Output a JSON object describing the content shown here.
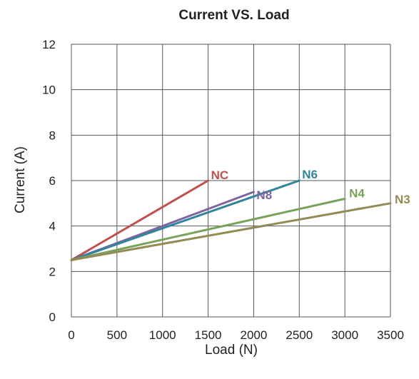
{
  "chart_data": {
    "type": "line",
    "title": "Current VS. Load",
    "xlabel": "Load (N)",
    "ylabel": "Current (A)",
    "xlim": [
      0,
      3500
    ],
    "ylim": [
      0,
      12
    ],
    "xticks": [
      0,
      500,
      1000,
      1500,
      2000,
      2500,
      3000,
      3500
    ],
    "yticks": [
      0,
      2,
      4,
      6,
      8,
      10,
      12
    ],
    "grid": true,
    "legend": "inline-labels",
    "series": [
      {
        "name": "NC",
        "color": "#c0504d",
        "points": [
          [
            0,
            2.5
          ],
          [
            1500,
            6.0
          ]
        ]
      },
      {
        "name": "N8",
        "color": "#8064a2",
        "points": [
          [
            0,
            2.5
          ],
          [
            2000,
            5.5
          ]
        ]
      },
      {
        "name": "N6",
        "color": "#31849b",
        "points": [
          [
            0,
            2.5
          ],
          [
            2500,
            6.0
          ]
        ]
      },
      {
        "name": "N4",
        "color": "#77a359",
        "points": [
          [
            0,
            2.5
          ],
          [
            3000,
            5.2
          ]
        ]
      },
      {
        "name": "N3",
        "color": "#948a54",
        "points": [
          [
            0,
            2.5
          ],
          [
            3500,
            5.0
          ]
        ]
      }
    ]
  }
}
